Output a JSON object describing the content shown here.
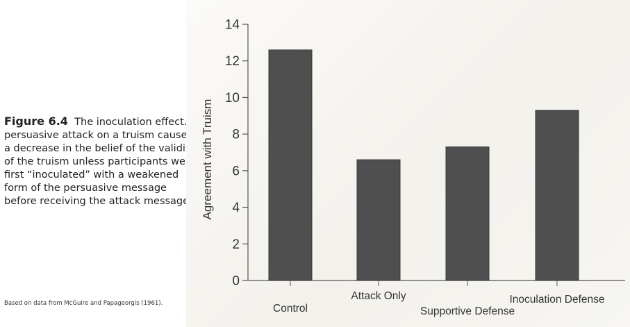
{
  "caption": {
    "figure_label": "Figure 6.4",
    "text": "The inoculation effect. A persuasive attack on a truism caused a decrease in the belief of the validity of the truism unless participants were first “inoculated” with a weakened form of the persuasive message before receiving the attack message.",
    "source": "Based on data from McGuire and Papageorgis (1961)."
  },
  "chart_data": {
    "type": "bar",
    "categories": [
      "Control",
      "Attack Only",
      "Supportive Defense",
      "Inoculation Defense"
    ],
    "values": [
      12.6,
      6.6,
      7.3,
      9.3
    ],
    "title": "",
    "xlabel": "",
    "ylabel": "Agreement with Truism",
    "ylim": [
      0,
      14
    ],
    "yticks": [
      0,
      2,
      4,
      6,
      8,
      10,
      12,
      14
    ],
    "grid": false,
    "legend": "none",
    "bar_color": "#4f4f4f"
  }
}
